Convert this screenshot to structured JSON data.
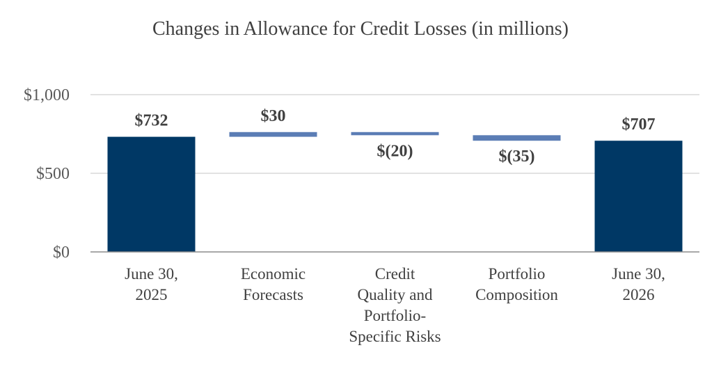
{
  "chart_data": {
    "type": "bar",
    "subtype": "waterfall",
    "title": "Changes in Allowance for Credit Losses (in millions)",
    "xlabel": "",
    "ylabel": "",
    "ylim": [
      0,
      1000
    ],
    "yticks": [
      {
        "value": 0,
        "label": "$0"
      },
      {
        "value": 500,
        "label": "$500"
      },
      {
        "value": 1000,
        "label": "$1,000"
      }
    ],
    "grid": true,
    "legend": "none",
    "categories": [
      [
        "June 30,",
        "2025"
      ],
      [
        "Economic",
        "Forecasts"
      ],
      [
        "Credit",
        "Quality and",
        "Portfolio-",
        "Specific Risks"
      ],
      [
        "Portfolio",
        "Composition"
      ],
      [
        "June 30,",
        "2026"
      ]
    ],
    "bars": [
      {
        "kind": "total",
        "start": 0,
        "end": 732,
        "label": "$732"
      },
      {
        "kind": "change",
        "start": 732,
        "end": 762,
        "label": "$30"
      },
      {
        "kind": "change",
        "start": 762,
        "end": 742,
        "label": "$(20)"
      },
      {
        "kind": "change",
        "start": 742,
        "end": 707,
        "label": "$(35)"
      },
      {
        "kind": "total",
        "start": 0,
        "end": 707,
        "label": "$707"
      }
    ],
    "colors": {
      "total": "#003865",
      "change": "#5B7DB5",
      "grid": "#D9D9D9",
      "axis": "#8C8C8C"
    }
  }
}
